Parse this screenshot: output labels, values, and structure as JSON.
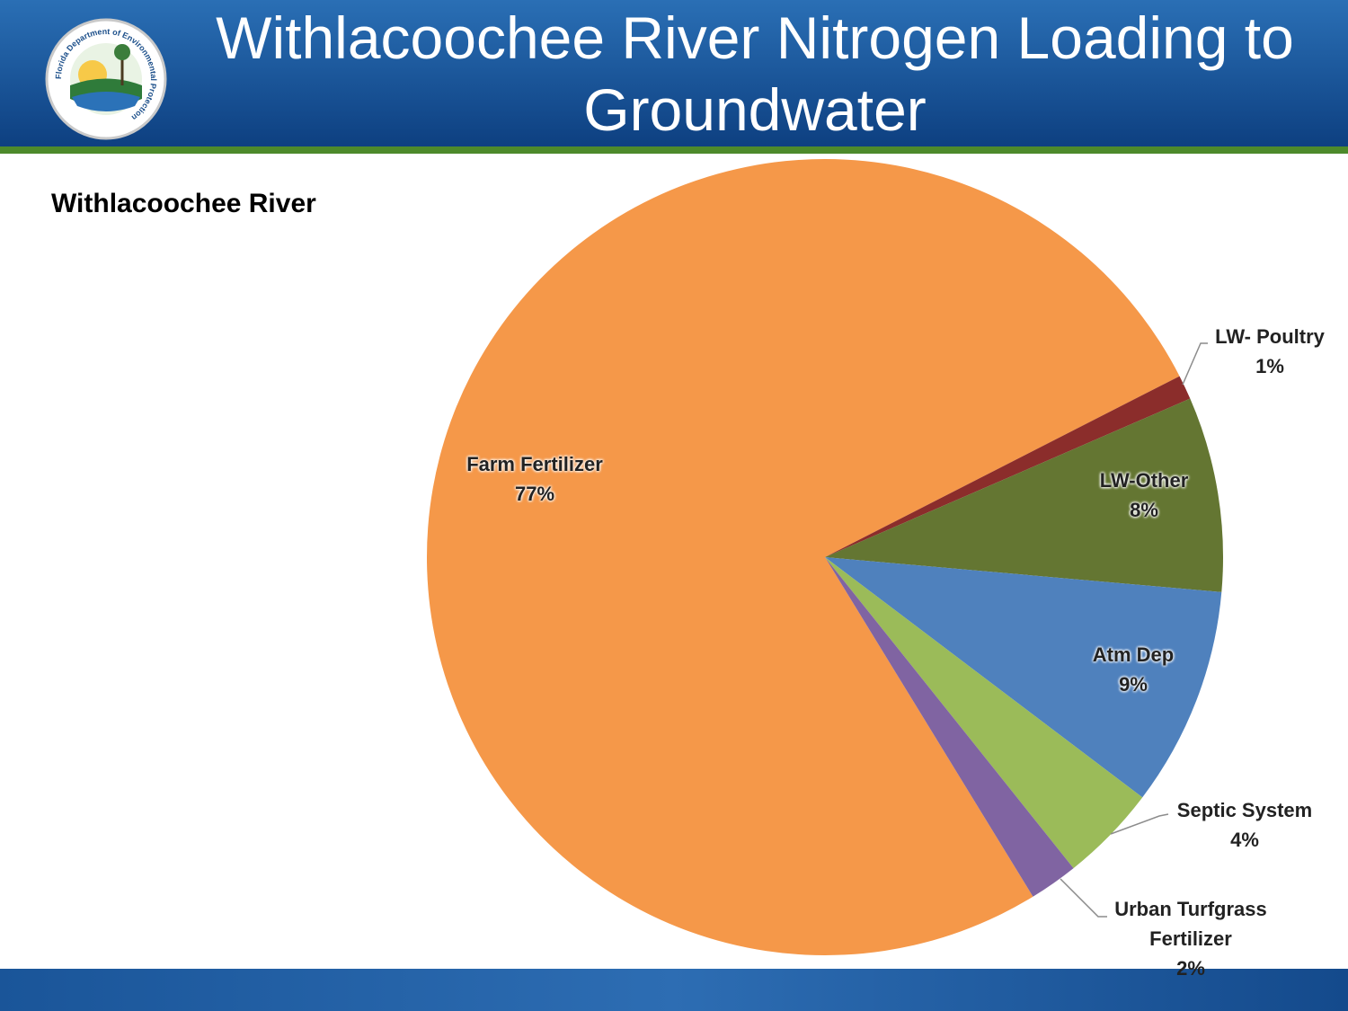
{
  "header": {
    "title": "Withlacoochee River Nitrogen Loading to Groundwater",
    "logo_text": "Florida Department of Environmental Protection"
  },
  "chart_data": {
    "type": "pie",
    "title": "Withlacoochee River",
    "categories": [
      "Farm Fertilizer",
      "LW- Poultry",
      "LW-Other",
      "Atm Dep",
      "Septic System",
      "Urban Turfgrass Fertilizer"
    ],
    "values": [
      77,
      1,
      8,
      9,
      4,
      2
    ],
    "value_labels": [
      "77%",
      "1%",
      "8%",
      "9%",
      "4%",
      "2%"
    ],
    "colors": [
      "#f59849",
      "#8b2d2b",
      "#647632",
      "#4f81bd",
      "#9bbb59",
      "#8064a2"
    ]
  }
}
